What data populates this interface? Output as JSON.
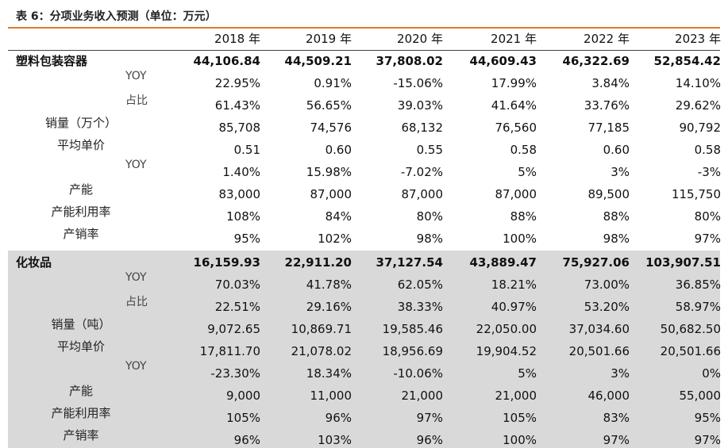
{
  "caption": "表 6：分项业务收入预测（单位：万元）",
  "years": [
    "2018 年",
    "2019 年",
    "2020 年",
    "2021 年",
    "2022 年",
    "2023 年"
  ],
  "sections": [
    {
      "name": "塑料包装容器",
      "values": [
        "44,106.84",
        "44,509.21",
        "37,808.02",
        "44,609.43",
        "46,322.69",
        "52,854.42"
      ],
      "rows": [
        {
          "label": "YOY",
          "kind": "yoy",
          "values": [
            "22.95%",
            "0.91%",
            "-15.06%",
            "17.99%",
            "3.84%",
            "14.10%"
          ]
        },
        {
          "label": "占比",
          "kind": "yoy",
          "values": [
            "61.43%",
            "56.65%",
            "39.03%",
            "41.64%",
            "33.76%",
            "29.62%"
          ]
        },
        {
          "label": "销量（万个）",
          "kind": "label",
          "values": [
            "85,708",
            "74,576",
            "68,132",
            "76,560",
            "77,185",
            "90,792"
          ]
        },
        {
          "label": "平均单价",
          "kind": "label",
          "values": [
            "0.51",
            "0.60",
            "0.55",
            "0.58",
            "0.60",
            "0.58"
          ]
        },
        {
          "label": "YOY",
          "kind": "yoy",
          "values": [
            "1.40%",
            "15.98%",
            "-7.02%",
            "5%",
            "3%",
            "-3%"
          ]
        },
        {
          "label": "产能",
          "kind": "label",
          "values": [
            "83,000",
            "87,000",
            "87,000",
            "87,000",
            "89,500",
            "115,750"
          ]
        },
        {
          "label": "产能利用率",
          "kind": "label",
          "values": [
            "108%",
            "84%",
            "80%",
            "88%",
            "88%",
            "80%"
          ]
        },
        {
          "label": "产销率",
          "kind": "label",
          "values": [
            "95%",
            "102%",
            "98%",
            "100%",
            "98%",
            "97%"
          ]
        }
      ]
    },
    {
      "name": "化妆品",
      "values": [
        "16,159.93",
        "22,911.20",
        "37,127.54",
        "43,889.47",
        "75,927.06",
        "103,907.51"
      ],
      "rows": [
        {
          "label": "YOY",
          "kind": "yoy",
          "values": [
            "70.03%",
            "41.78%",
            "62.05%",
            "18.21%",
            "73.00%",
            "36.85%"
          ]
        },
        {
          "label": "占比",
          "kind": "yoy",
          "values": [
            "22.51%",
            "29.16%",
            "38.33%",
            "40.97%",
            "53.20%",
            "58.97%"
          ]
        },
        {
          "label": "销量（吨）",
          "kind": "label",
          "values": [
            "9,072.65",
            "10,869.71",
            "19,585.46",
            "22,050.00",
            "37,034.60",
            "50,682.50"
          ]
        },
        {
          "label": "平均单价",
          "kind": "label",
          "values": [
            "17,811.70",
            "21,078.02",
            "18,956.69",
            "19,904.52",
            "20,501.66",
            "20,501.66"
          ]
        },
        {
          "label": "YOY",
          "kind": "yoy",
          "values": [
            "-23.30%",
            "18.34%",
            "-10.06%",
            "5%",
            "3%",
            "0%"
          ]
        },
        {
          "label": "产能",
          "kind": "label",
          "values": [
            "9,000",
            "11,000",
            "21,000",
            "21,000",
            "46,000",
            "55,000"
          ]
        },
        {
          "label": "产能利用率",
          "kind": "label",
          "values": [
            "105%",
            "96%",
            "97%",
            "105%",
            "83%",
            "95%"
          ]
        },
        {
          "label": "产销率",
          "kind": "label",
          "values": [
            "96%",
            "103%",
            "96%",
            "100%",
            "97%",
            "97%"
          ]
        }
      ]
    }
  ]
}
